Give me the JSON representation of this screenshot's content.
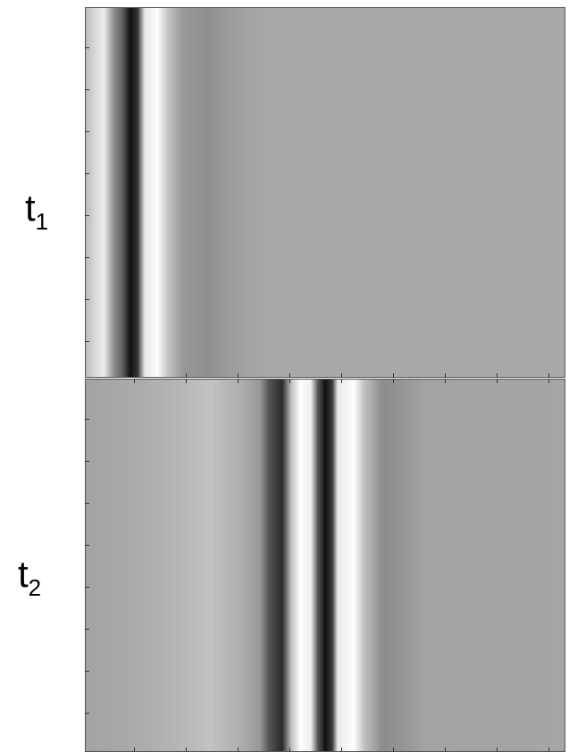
{
  "panels": [
    {
      "label": "t",
      "subscript": "1"
    },
    {
      "label": "t",
      "subscript": "2"
    }
  ]
}
